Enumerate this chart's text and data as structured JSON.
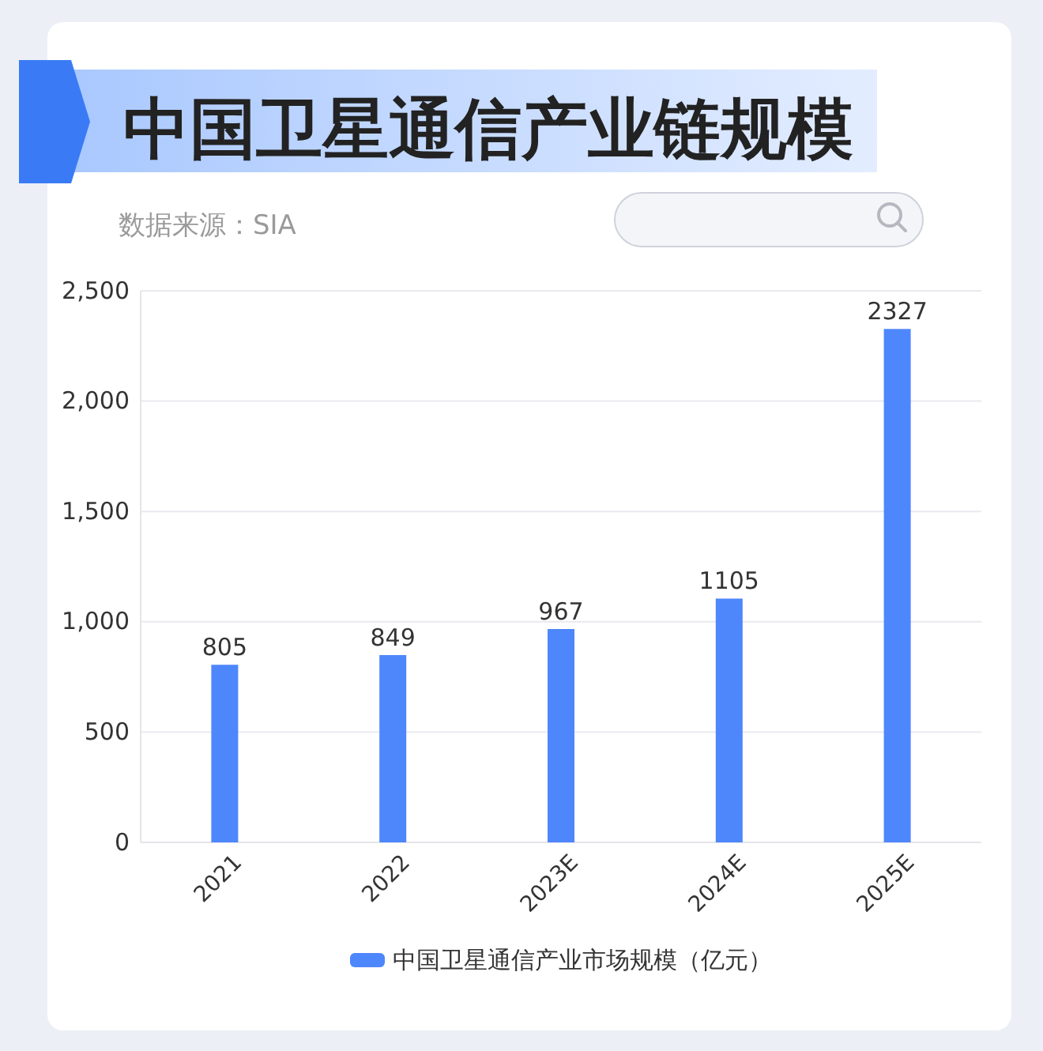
{
  "chart_data": {
    "type": "bar",
    "title": "中国卫星通信产业链规模",
    "annotations": [
      "数据来源：SIA"
    ],
    "categories": [
      "2021",
      "2022",
      "2023E",
      "2024E",
      "2025E"
    ],
    "series": [
      {
        "name": "中国卫星通信产业市场规模（亿元）",
        "color": "#4e86fc",
        "values": [
          805,
          849,
          967,
          1105,
          2327
        ]
      }
    ],
    "ylim": [
      0,
      2500
    ],
    "yticks": [
      0,
      500,
      {
        "value": 1000,
        "label": "1,000"
      },
      {
        "value": 1500,
        "label": "1,500"
      },
      {
        "value": 2000,
        "label": "2,000"
      },
      {
        "value": 2500,
        "label": "2,500"
      }
    ],
    "grid": "y",
    "legend": "bottom",
    "data_labels": true
  }
}
